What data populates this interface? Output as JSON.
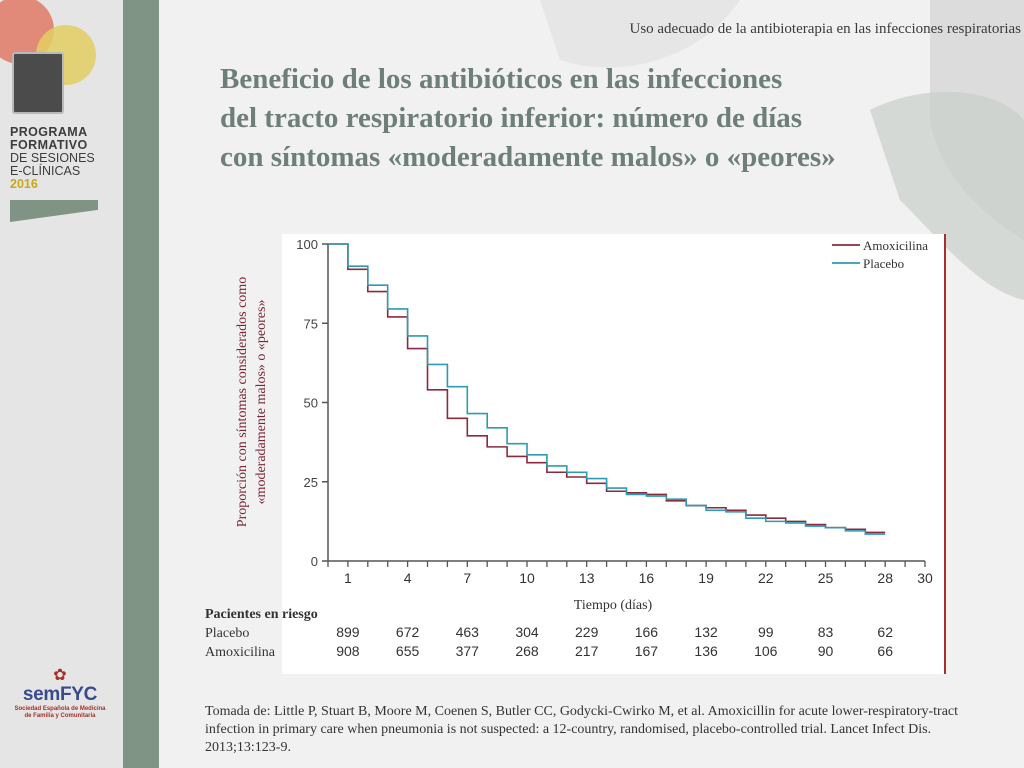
{
  "header": {
    "title": "Uso adecuado de la antibioterapia en las infecciones respiratorias"
  },
  "slide": {
    "title_lines": [
      "Beneficio de los antibióticos en las infecciones",
      "del tracto respiratorio inferior: número de días",
      "con síntomas «moderadamente malos» o «peores»"
    ],
    "citation": "Tomada de: Little P, Stuart B, Moore M, Coenen S, Butler CC, Godycki-Cwirko M, et al.  Amoxicillin for acute lower-respiratory-tract infection in primary care when pneumonia is not suspected: a 12-country, randomised, placebo-controlled trial. Lancet Infect Dis. 2013;13:123-9."
  },
  "branding": {
    "program_lines": [
      "PROGRAMA",
      "FORMATIVO",
      "DE SESIONES",
      "E-CLÍNICAS",
      "2016"
    ],
    "org_name": "semFYC",
    "org_subtitle_lines": [
      "Sociedad Española de Medicina",
      "de Familia y Comunitaria"
    ]
  },
  "colors": {
    "amoxicilina": "#8b2a3e",
    "placebo": "#2f9ab0",
    "accent_red": "#a3302a",
    "title": "#6e7f7a",
    "sidebar_stripe": "#7f9485"
  },
  "chart_data": {
    "type": "line",
    "step": true,
    "ylabel_lines": [
      "Proporción con síntomas considerados como",
      "«moderadamente malos» o «peores»"
    ],
    "xlabel": "Tiempo (días)",
    "ylim": [
      0,
      100
    ],
    "xlim": [
      0,
      30
    ],
    "yticks": [
      0,
      25,
      50,
      75,
      100
    ],
    "xticks": [
      1,
      4,
      7,
      10,
      13,
      16,
      19,
      22,
      25,
      28,
      30
    ],
    "legend_position": "top-right",
    "series": [
      {
        "name": "Amoxicilina",
        "color": "#8b2a3e",
        "points": [
          [
            0,
            100
          ],
          [
            1,
            92
          ],
          [
            2,
            85
          ],
          [
            3,
            77
          ],
          [
            4,
            67
          ],
          [
            5,
            54
          ],
          [
            6,
            45
          ],
          [
            7,
            39.5
          ],
          [
            8,
            36
          ],
          [
            9,
            33
          ],
          [
            10,
            31
          ],
          [
            11,
            28
          ],
          [
            12,
            26.5
          ],
          [
            13,
            24.5
          ],
          [
            14,
            22
          ],
          [
            15,
            21.5
          ],
          [
            16,
            21
          ],
          [
            17,
            19
          ],
          [
            18,
            17.5
          ],
          [
            19,
            16.8
          ],
          [
            20,
            16
          ],
          [
            21,
            14.5
          ],
          [
            22,
            13.5
          ],
          [
            23,
            12.5
          ],
          [
            24,
            11.5
          ],
          [
            25,
            10.5
          ],
          [
            26,
            10
          ],
          [
            27,
            9
          ],
          [
            28,
            9
          ]
        ]
      },
      {
        "name": "Placebo",
        "color": "#2f9ab0",
        "points": [
          [
            0,
            100
          ],
          [
            1,
            93
          ],
          [
            2,
            87
          ],
          [
            3,
            79.5
          ],
          [
            4,
            71
          ],
          [
            5,
            62
          ],
          [
            6,
            55
          ],
          [
            7,
            46.5
          ],
          [
            8,
            42
          ],
          [
            9,
            37
          ],
          [
            10,
            33.5
          ],
          [
            11,
            30
          ],
          [
            12,
            28
          ],
          [
            13,
            26
          ],
          [
            14,
            23
          ],
          [
            15,
            21
          ],
          [
            16,
            20.5
          ],
          [
            17,
            19.5
          ],
          [
            18,
            17.5
          ],
          [
            19,
            16
          ],
          [
            20,
            15.5
          ],
          [
            21,
            13.5
          ],
          [
            22,
            12.5
          ],
          [
            23,
            12
          ],
          [
            24,
            11
          ],
          [
            25,
            10.5
          ],
          [
            26,
            9.5
          ],
          [
            27,
            8.5
          ],
          [
            28,
            8.5
          ]
        ]
      }
    ],
    "risk_table": {
      "heading": "Pacientes en riesgo",
      "days": [
        1,
        4,
        7,
        10,
        13,
        16,
        19,
        22,
        25,
        28
      ],
      "rows": [
        {
          "label": "Placebo",
          "values": [
            899,
            672,
            463,
            304,
            229,
            166,
            132,
            99,
            83,
            62
          ]
        },
        {
          "label": "Amoxicilina",
          "values": [
            908,
            655,
            377,
            268,
            217,
            167,
            136,
            106,
            90,
            66
          ]
        }
      ]
    }
  }
}
